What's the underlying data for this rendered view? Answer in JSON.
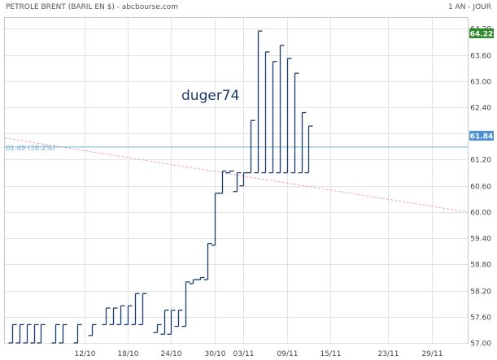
{
  "header": {
    "title": "PETROLE BRENT (BARIL EN $) - abcbourse.com",
    "period": "1 AN - JOUR"
  },
  "colors": {
    "bars": "#1a3a6b",
    "grid": "#e3e3e3",
    "frame": "#c8c8c8",
    "level_line": "#7ab0d6",
    "trend_line": "#f2a6b4",
    "last_tag": "#2e8b2e",
    "current_tag": "#4a90d9"
  },
  "annotations": {
    "watermark": "duger74",
    "level_label": "61.49  (38.2%)",
    "last_price_label": "64.22",
    "current_price_label": "61.84"
  },
  "chart_data": {
    "type": "line",
    "title": "PETROLE BRENT (BARIL EN $)",
    "style": "step bars (high-low ranges per day)",
    "y_axis": {
      "position": "right",
      "range": [
        57.0,
        64.45
      ],
      "ticks": [
        "64.20",
        "63.60",
        "63.00",
        "62.40",
        "61.80",
        "61.20",
        "60.60",
        "60.00",
        "59.40",
        "58.80",
        "58.20",
        "57.60",
        "57.00"
      ]
    },
    "x_axis": {
      "range": [
        "2018-10-01",
        "2018-12-04"
      ],
      "ticks": [
        "12/10",
        "18/10",
        "24/10",
        "30/10",
        "03/11",
        "09/11",
        "15/11",
        "23/11",
        "29/11"
      ]
    },
    "grid": true,
    "bars": [
      {
        "date": "2018-10-02",
        "low": 57.0,
        "high": 57.42
      },
      {
        "date": "2018-10-03",
        "low": 57.0,
        "high": 57.42
      },
      {
        "date": "2018-10-04",
        "low": 57.0,
        "high": 57.42
      },
      {
        "date": "2018-10-05",
        "low": 57.0,
        "high": 57.42
      },
      {
        "date": "2018-10-06",
        "low": 57.0,
        "high": 57.42
      },
      {
        "date": "2018-10-08",
        "low": 57.0,
        "high": 57.42
      },
      {
        "date": "2018-10-09",
        "low": 57.0,
        "high": 57.42
      },
      {
        "date": "2018-10-11",
        "low": 57.0,
        "high": 57.42
      },
      {
        "date": "2018-10-13",
        "low": 57.17,
        "high": 57.42
      },
      {
        "date": "2018-10-15",
        "low": 57.42,
        "high": 57.8
      },
      {
        "date": "2018-10-16",
        "low": 57.42,
        "high": 57.8
      },
      {
        "date": "2018-10-17",
        "low": 57.42,
        "high": 57.85
      },
      {
        "date": "2018-10-18",
        "low": 57.42,
        "high": 57.85
      },
      {
        "date": "2018-10-19",
        "low": 57.42,
        "high": 58.13
      },
      {
        "date": "2018-10-20",
        "low": 57.42,
        "high": 58.13
      },
      {
        "date": "2018-10-22",
        "low": 57.24,
        "high": 57.42
      },
      {
        "date": "2018-10-23",
        "low": 57.2,
        "high": 57.75
      },
      {
        "date": "2018-10-24",
        "low": 57.2,
        "high": 57.75
      },
      {
        "date": "2018-10-25",
        "low": 57.38,
        "high": 57.75
      },
      {
        "date": "2018-10-26",
        "low": 57.38,
        "high": 58.4
      },
      {
        "date": "2018-10-27",
        "low": 58.36,
        "high": 58.45
      },
      {
        "date": "2018-10-28",
        "low": 58.45,
        "high": 58.5
      },
      {
        "date": "2018-10-29",
        "low": 58.45,
        "high": 59.28
      },
      {
        "date": "2018-10-30",
        "low": 59.24,
        "high": 60.43
      },
      {
        "date": "2018-10-31",
        "low": 60.43,
        "high": 60.94
      },
      {
        "date": "2018-11-01",
        "low": 60.9,
        "high": 60.94
      },
      {
        "date": "2018-11-02",
        "low": 60.47,
        "high": 60.9
      },
      {
        "date": "2018-11-03",
        "low": 60.6,
        "high": 60.9
      },
      {
        "date": "2018-11-04",
        "low": 60.9,
        "high": 62.1
      },
      {
        "date": "2018-11-05",
        "low": 60.9,
        "high": 64.15
      },
      {
        "date": "2018-11-06",
        "low": 60.9,
        "high": 63.67
      },
      {
        "date": "2018-11-07",
        "low": 60.9,
        "high": 63.45
      },
      {
        "date": "2018-11-08",
        "low": 60.9,
        "high": 63.82
      },
      {
        "date": "2018-11-09",
        "low": 60.9,
        "high": 63.52
      },
      {
        "date": "2018-11-10",
        "low": 60.9,
        "high": 63.18
      },
      {
        "date": "2018-11-11",
        "low": 60.9,
        "high": 62.28
      },
      {
        "date": "2018-11-12",
        "low": 60.9,
        "high": 61.97
      }
    ]
  }
}
